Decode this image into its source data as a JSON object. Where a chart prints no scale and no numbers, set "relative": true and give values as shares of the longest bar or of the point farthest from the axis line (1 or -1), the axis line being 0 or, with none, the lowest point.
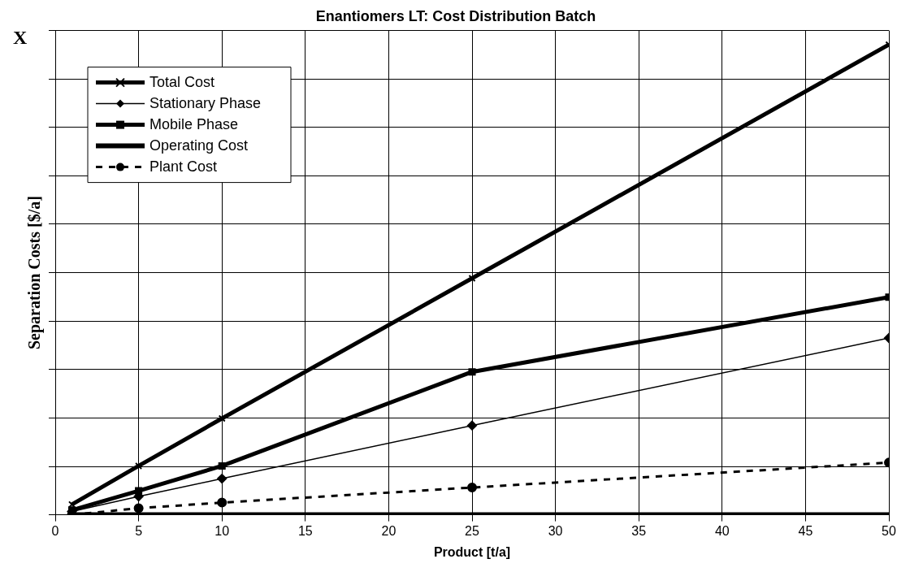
{
  "chart_data": {
    "type": "line",
    "title": "Enantiomers LT: Cost Distribution Batch",
    "xlabel": "Product [t/a]",
    "ylabel": "Separation Costs [$/a]",
    "annotations": [
      "X"
    ],
    "x": [
      1,
      5,
      10,
      25,
      50
    ],
    "xlim": [
      0,
      50
    ],
    "xticks": [
      0,
      5,
      10,
      15,
      20,
      25,
      30,
      35,
      40,
      45,
      50
    ],
    "relative": true,
    "grid": true,
    "legend": "top left",
    "series": [
      {
        "name": "Total Cost",
        "color": "#000000",
        "marker": "cross",
        "line_style": "solid",
        "values": [
          0.022,
          0.104,
          0.205,
          0.503,
          1
        ]
      },
      {
        "name": "Stationary Phase",
        "color": "#000000",
        "marker": "diamond",
        "line_style": "solid",
        "values": [
          0.007,
          0.039,
          0.077,
          0.19,
          0.376
        ]
      },
      {
        "name": "Mobile Phase",
        "color": "#000000",
        "marker": "square",
        "line_style": "solid",
        "values": [
          0.01,
          0.051,
          0.104,
          0.304,
          0.463
        ]
      },
      {
        "name": "Operating Cost",
        "color": "#000000",
        "marker": "none",
        "line_style": "solid",
        "values": [
          0,
          0,
          0,
          0,
          0
        ]
      },
      {
        "name": "Plant Cost",
        "color": "#000000",
        "marker": "circle",
        "line_style": "dashed",
        "values": [
          0,
          0.014,
          0.026,
          0.058,
          0.111
        ]
      }
    ]
  }
}
